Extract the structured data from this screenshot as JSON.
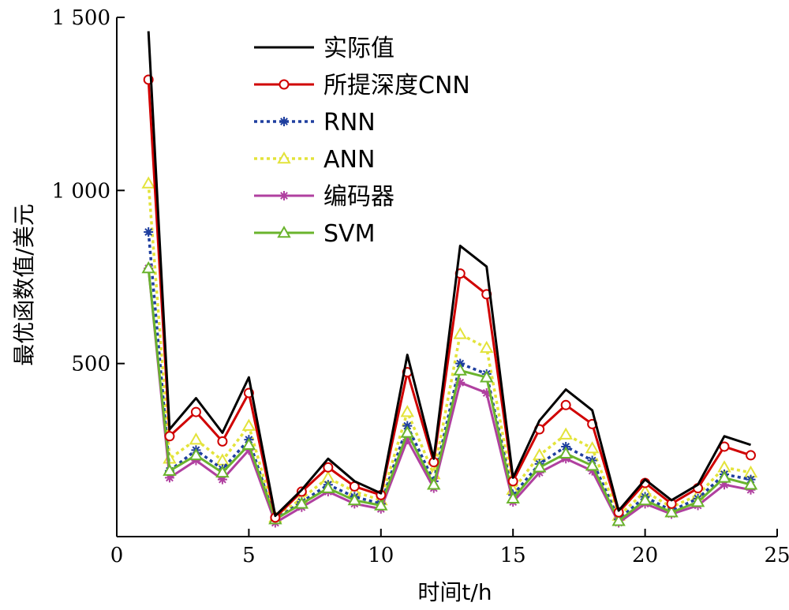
{
  "chart_data": {
    "type": "line",
    "title": "",
    "xlabel": "时间t/h",
    "ylabel": "最优函数值/美元",
    "xlim": [
      0,
      25
    ],
    "ylim": [
      0,
      1500
    ],
    "xticks": [
      0,
      5,
      10,
      15,
      20,
      25
    ],
    "xtick_labels": [
      "0",
      "5",
      "10",
      "15",
      "20",
      "25"
    ],
    "yticks": [
      500,
      1000,
      1500
    ],
    "ytick_labels": [
      "500",
      "1 000",
      "1 500"
    ],
    "grid": false,
    "legend_position": "top-left",
    "x": [
      1.2,
      2,
      3,
      4,
      5,
      6,
      7,
      8,
      9,
      10,
      11,
      12,
      13,
      14,
      15,
      16,
      17,
      18,
      19,
      20,
      21,
      22,
      23,
      24
    ],
    "series": [
      {
        "name": "实际值",
        "color": "#000000",
        "dash": "solid",
        "marker": "none",
        "values": [
          1460,
          310,
          400,
          300,
          460,
          60,
          135,
          225,
          160,
          125,
          525,
          225,
          840,
          780,
          170,
          335,
          425,
          365,
          75,
          165,
          105,
          150,
          290,
          265
        ]
      },
      {
        "name": "所提深度CNN",
        "color": "#d00000",
        "dash": "solid",
        "marker": "circle",
        "values": [
          1320,
          290,
          360,
          275,
          415,
          55,
          130,
          200,
          145,
          120,
          475,
          215,
          760,
          700,
          160,
          310,
          380,
          325,
          70,
          155,
          95,
          140,
          260,
          235
        ]
      },
      {
        "name": "RNN",
        "color": "#1f3f9f",
        "dash": "dotted",
        "marker": "asterisk",
        "values": [
          880,
          190,
          250,
          195,
          280,
          50,
          100,
          150,
          115,
          95,
          320,
          160,
          500,
          470,
          120,
          210,
          260,
          220,
          50,
          115,
          75,
          110,
          180,
          165
        ]
      },
      {
        "name": "ANN",
        "color": "#e3e33a",
        "dash": "dotted",
        "marker": "triangle",
        "values": [
          1020,
          225,
          280,
          220,
          320,
          55,
          110,
          170,
          130,
          105,
          360,
          180,
          585,
          545,
          135,
          235,
          295,
          255,
          60,
          130,
          85,
          120,
          200,
          185
        ]
      },
      {
        "name": "编码器",
        "color": "#b040a0",
        "dash": "solid",
        "marker": "asterisk",
        "values": [
          775,
          170,
          220,
          165,
          250,
          40,
          85,
          130,
          95,
          80,
          280,
          140,
          445,
          415,
          100,
          185,
          225,
          190,
          40,
          95,
          65,
          90,
          150,
          135
        ]
      },
      {
        "name": "SVM",
        "color": "#6ab42d",
        "dash": "solid",
        "marker": "triangle",
        "values": [
          775,
          190,
          235,
          185,
          265,
          50,
          95,
          140,
          105,
          90,
          300,
          150,
          480,
          460,
          110,
          200,
          240,
          205,
          45,
          105,
          70,
          100,
          170,
          150
        ]
      }
    ]
  }
}
